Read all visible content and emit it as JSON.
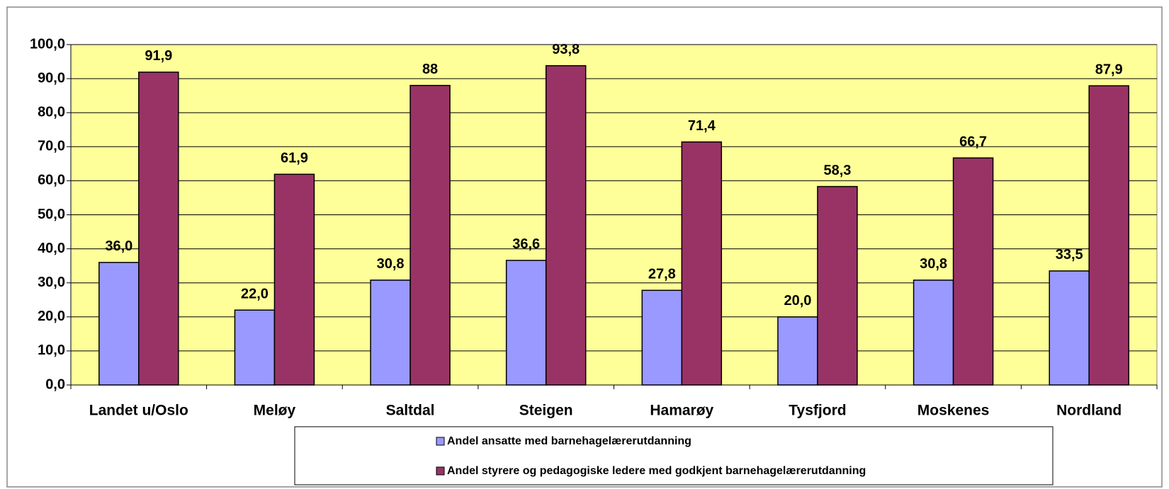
{
  "chart_data": {
    "type": "bar",
    "categories": [
      "Landet u/Oslo",
      "Meløy",
      "Saltdal",
      "Steigen",
      "Hamarøy",
      "Tysfjord",
      "Moskenes",
      "Nordland"
    ],
    "series": [
      {
        "name": "Andel ansatte med barnehagelærerutdanning",
        "color": "#9999ff",
        "values": [
          36.0,
          22.0,
          30.8,
          36.6,
          27.8,
          20.0,
          30.8,
          33.5
        ],
        "value_labels": [
          "36,0",
          "22,0",
          "30,8",
          "36,6",
          "27,8",
          "20,0",
          "30,8",
          "33,5"
        ]
      },
      {
        "name": "Andel styrere og pedagogiske ledere med godkjent barnehagelærerutdanning",
        "color": "#993366",
        "values": [
          91.9,
          61.9,
          88,
          93.8,
          71.4,
          58.3,
          66.7,
          87.9
        ],
        "value_labels": [
          "91,9",
          "61,9",
          "88",
          "93,8",
          "71,4",
          "58,3",
          "66,7",
          "87,9"
        ]
      }
    ],
    "ylim": [
      0,
      100
    ],
    "yticks": [
      {
        "value": 0,
        "label": "0,0"
      },
      {
        "value": 10,
        "label": "10,0"
      },
      {
        "value": 20,
        "label": "20,0"
      },
      {
        "value": 30,
        "label": "30,0"
      },
      {
        "value": 40,
        "label": "40,0"
      },
      {
        "value": 50,
        "label": "50,0"
      },
      {
        "value": 60,
        "label": "60,0"
      },
      {
        "value": 70,
        "label": "70,0"
      },
      {
        "value": 80,
        "label": "80,0"
      },
      {
        "value": 90,
        "label": "90,0"
      },
      {
        "value": 100,
        "label": "100,0"
      }
    ],
    "grid": true,
    "plot_background": "#ffff99",
    "legend": "bottom"
  }
}
